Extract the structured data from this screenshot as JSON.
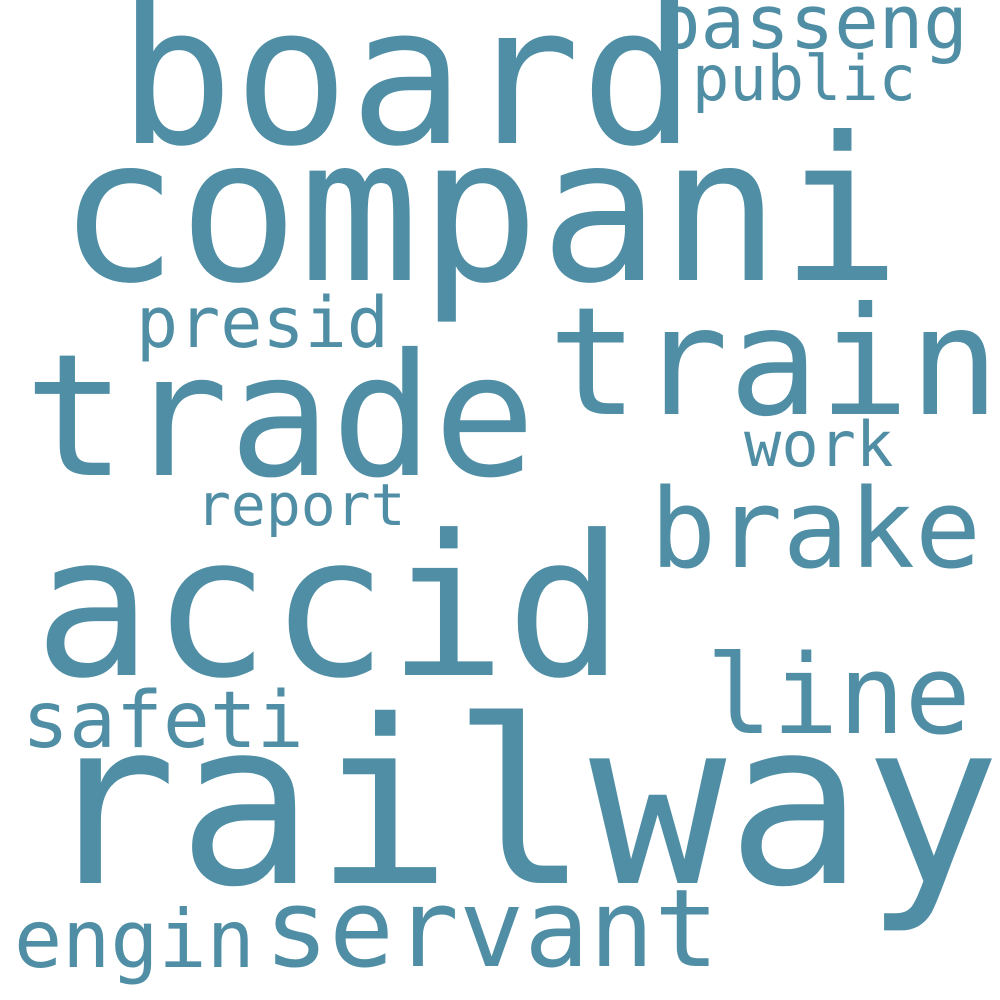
{
  "word_color": "#4f8ea4",
  "background_color": "#ffffff",
  "words": {
    "railway": "railway",
    "compani": "compani",
    "accid": "accid",
    "trade": "trade",
    "board": "board",
    "train": "train",
    "brake": "brake",
    "servant": "servant",
    "line": "line",
    "engin": "engin",
    "safeti": "safeti",
    "passeng": "passeng",
    "presid": "presid",
    "public": "public",
    "work": "work",
    "report": "report"
  }
}
